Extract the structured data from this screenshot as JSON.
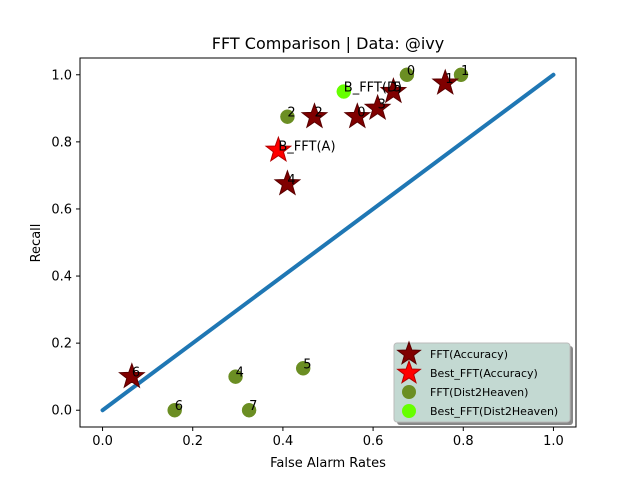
{
  "chart_data": {
    "type": "scatter",
    "title": "FFT Comparison |  Data: @ivy",
    "xlabel": "False Alarm Rates",
    "ylabel": "Recall",
    "xlim": [
      -0.05,
      1.05
    ],
    "ylim": [
      -0.05,
      1.05
    ],
    "xticks": [
      "0.0",
      "0.2",
      "0.4",
      "0.6",
      "0.8",
      "1.0"
    ],
    "yticks": [
      "0.0",
      "0.2",
      "0.4",
      "0.6",
      "0.8",
      "1.0"
    ],
    "grid": false,
    "legend_position": "lower-right",
    "diagonal": {
      "x": [
        0,
        1
      ],
      "y": [
        0,
        1
      ],
      "color": "#1f77b4"
    },
    "series": [
      {
        "name": "FFT(Accuracy)",
        "marker": "star",
        "color": "#800000",
        "points": [
          {
            "x": 0.065,
            "y": 0.1,
            "label": "6"
          },
          {
            "x": 0.41,
            "y": 0.675,
            "label": "4"
          },
          {
            "x": 0.47,
            "y": 0.875,
            "label": "2"
          },
          {
            "x": 0.565,
            "y": 0.875,
            "label": "0"
          },
          {
            "x": 0.61,
            "y": 0.9,
            "label": "3"
          },
          {
            "x": 0.645,
            "y": 0.95,
            "label": "5"
          },
          {
            "x": 0.76,
            "y": 0.975,
            "label": "1"
          }
        ]
      },
      {
        "name": "Best_FFT(Accuracy)",
        "marker": "star",
        "color": "#ff0000",
        "points": [
          {
            "x": 0.39,
            "y": 0.775,
            "label": "B_FFT(A)"
          }
        ]
      },
      {
        "name": "FFT(Dist2Heaven)",
        "marker": "circle",
        "color": "#6b8e23",
        "points": [
          {
            "x": 0.16,
            "y": 0.0,
            "label": "6"
          },
          {
            "x": 0.295,
            "y": 0.1,
            "label": "4"
          },
          {
            "x": 0.325,
            "y": 0.0,
            "label": "7"
          },
          {
            "x": 0.41,
            "y": 0.875,
            "label": "2"
          },
          {
            "x": 0.445,
            "y": 0.125,
            "label": "5"
          },
          {
            "x": 0.675,
            "y": 1.0,
            "label": "0"
          },
          {
            "x": 0.795,
            "y": 1.0,
            "label": "1"
          }
        ]
      },
      {
        "name": "Best_FFT(Dist2Heaven)",
        "marker": "circle",
        "color": "#66ff00",
        "points": [
          {
            "x": 0.535,
            "y": 0.95,
            "label": "B_FFT(D)"
          }
        ]
      }
    ]
  }
}
